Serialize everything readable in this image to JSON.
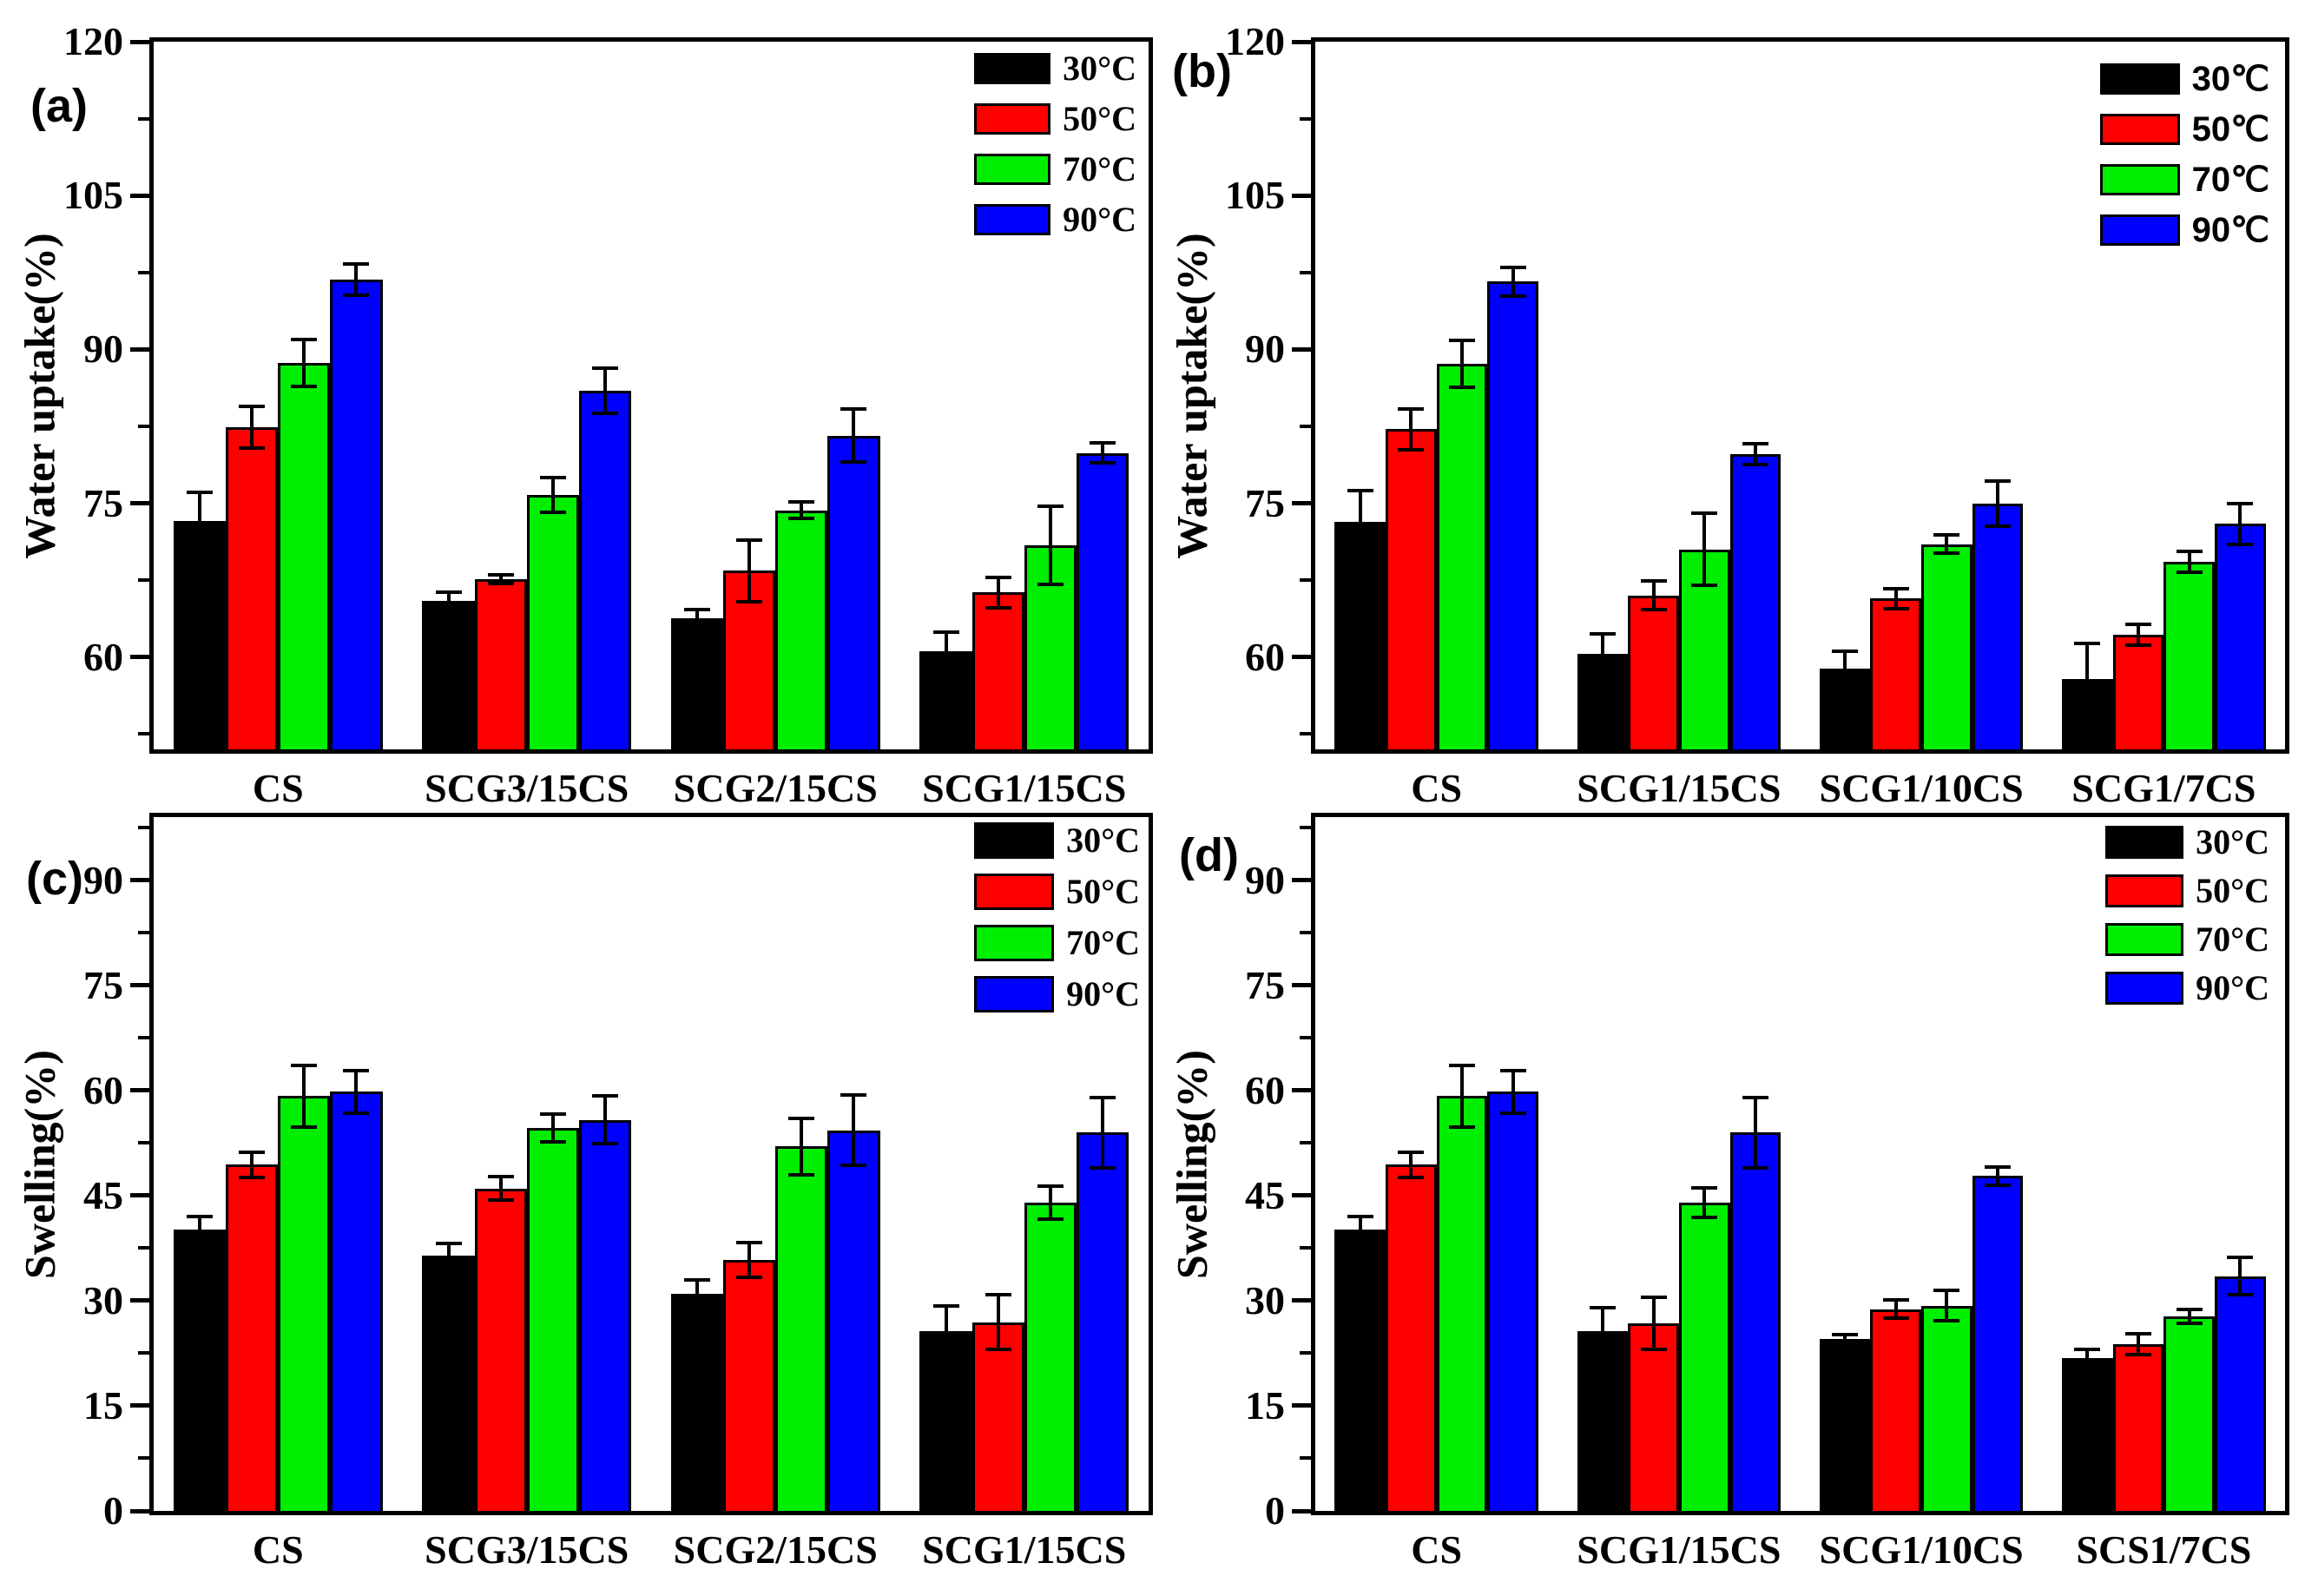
{
  "chart_data": [
    {
      "type": "bar",
      "panel_label": "(a)",
      "ylabel": "Water uptake(%)",
      "xlabel": "",
      "categories": [
        "CS",
        "SCG3/15CS",
        "SCG2/15CS",
        "SCG1/15CS"
      ],
      "ylim": [
        51,
        120
      ],
      "yticks": [
        60,
        75,
        90,
        105,
        120
      ],
      "minor_yticks": [
        52.5,
        67.5,
        82.5,
        97.5,
        112.5
      ],
      "grid": false,
      "legend_position": "top-right",
      "series": [
        {
          "name": "30°C",
          "color": "#000000",
          "values": [
            73.3,
            65.5,
            63.8,
            60.6
          ],
          "errors": [
            2.8,
            0.8,
            0.8,
            1.8
          ]
        },
        {
          "name": "50°C",
          "color": "#ff0000",
          "values": [
            82.4,
            67.6,
            68.4,
            66.3
          ],
          "errors": [
            2.0,
            0.4,
            3.0,
            1.5
          ]
        },
        {
          "name": "70°C",
          "color": "#00ee00",
          "values": [
            88.7,
            75.8,
            74.3,
            70.9
          ],
          "errors": [
            2.3,
            1.7,
            0.8,
            3.8
          ]
        },
        {
          "name": "90°C",
          "color": "#0000ff",
          "values": [
            96.8,
            86.0,
            81.6,
            79.9
          ],
          "errors": [
            1.5,
            2.2,
            2.6,
            1.0
          ]
        }
      ]
    },
    {
      "type": "bar",
      "panel_label": "(b)",
      "ylabel": "Water uptake(%)",
      "xlabel": "",
      "categories": [
        "CS",
        "SCG1/15CS",
        "SCG1/10CS",
        "SCG1/7CS"
      ],
      "ylim": [
        51,
        120
      ],
      "yticks": [
        60,
        75,
        90,
        105,
        120
      ],
      "minor_yticks": [
        52.5,
        67.5,
        82.5,
        97.5,
        112.5
      ],
      "grid": false,
      "legend_position": "top-right",
      "series": [
        {
          "name": "30℃",
          "color": "#000000",
          "values": [
            73.2,
            60.3,
            58.9,
            57.9
          ],
          "errors": [
            3.0,
            2.0,
            1.7,
            3.4
          ]
        },
        {
          "name": "50℃",
          "color": "#ff0000",
          "values": [
            82.2,
            66.0,
            65.7,
            62.2
          ],
          "errors": [
            2.0,
            1.4,
            1.0,
            1.0
          ]
        },
        {
          "name": "70℃",
          "color": "#00ee00",
          "values": [
            88.6,
            70.5,
            71.0,
            69.3
          ],
          "errors": [
            2.3,
            3.5,
            0.9,
            1.0
          ]
        },
        {
          "name": "90℃",
          "color": "#0000ff",
          "values": [
            96.6,
            79.8,
            75.0,
            73.0
          ],
          "errors": [
            1.4,
            1.0,
            2.2,
            2.0
          ]
        }
      ]
    },
    {
      "type": "bar",
      "panel_label": "(c)",
      "ylabel": "Swelling(%)",
      "xlabel": "",
      "categories": [
        "CS",
        "SCG3/15CS",
        "SCG2/15CS",
        "SCG1/15CS"
      ],
      "ylim": [
        0,
        99
      ],
      "yticks": [
        0,
        15,
        30,
        45,
        60,
        75,
        90
      ],
      "minor_yticks": [
        7.5,
        22.5,
        37.5,
        52.5,
        67.5,
        82.5,
        97.5
      ],
      "grid": false,
      "legend_position": "top-right",
      "series": [
        {
          "name": "30°C",
          "color": "#000000",
          "values": [
            40.2,
            36.4,
            31.0,
            25.7
          ],
          "errors": [
            1.8,
            1.8,
            2.0,
            3.6
          ]
        },
        {
          "name": "50°C",
          "color": "#ff0000",
          "values": [
            49.4,
            46.0,
            35.8,
            26.9
          ],
          "errors": [
            1.8,
            1.7,
            2.5,
            3.9
          ]
        },
        {
          "name": "70°C",
          "color": "#00ee00",
          "values": [
            59.2,
            54.6,
            52.0,
            44.0
          ],
          "errors": [
            4.4,
            2.0,
            4.0,
            2.4
          ]
        },
        {
          "name": "90°C",
          "color": "#0000ff",
          "values": [
            59.8,
            55.8,
            54.3,
            54.0
          ],
          "errors": [
            3.0,
            3.4,
            5.0,
            5.0
          ]
        }
      ]
    },
    {
      "type": "bar",
      "panel_label": "(d)",
      "ylabel": "Swelling(%)",
      "xlabel": "",
      "categories": [
        "CS",
        "SCG1/15CS",
        "SCG1/10CS",
        "SCS1/7CS"
      ],
      "ylim": [
        0,
        99
      ],
      "yticks": [
        0,
        15,
        30,
        45,
        60,
        75,
        90
      ],
      "minor_yticks": [
        7.5,
        22.5,
        37.5,
        52.5,
        67.5,
        82.5,
        97.5
      ],
      "grid": false,
      "legend_position": "top-right",
      "series": [
        {
          "name": "30°C",
          "color": "#000000",
          "values": [
            40.2,
            25.6,
            24.5,
            21.8
          ],
          "errors": [
            1.8,
            3.4,
            0.6,
            1.2
          ]
        },
        {
          "name": "50°C",
          "color": "#ff0000",
          "values": [
            49.4,
            26.8,
            28.8,
            23.8
          ],
          "errors": [
            1.8,
            3.7,
            1.3,
            1.5
          ]
        },
        {
          "name": "70°C",
          "color": "#00ee00",
          "values": [
            59.2,
            44.0,
            29.3,
            27.8
          ],
          "errors": [
            4.4,
            2.1,
            2.2,
            1.0
          ]
        },
        {
          "name": "90°C",
          "color": "#0000ff",
          "values": [
            59.8,
            54.0,
            47.8,
            33.5
          ],
          "errors": [
            3.0,
            5.0,
            1.3,
            2.7
          ]
        }
      ]
    }
  ]
}
